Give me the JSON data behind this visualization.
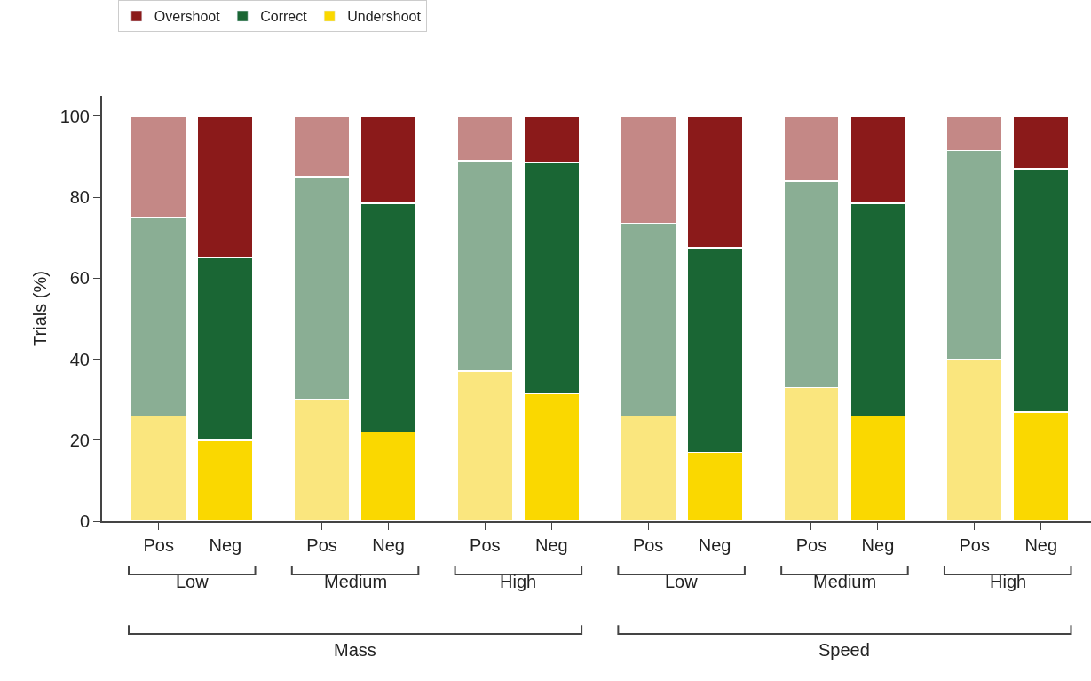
{
  "chart_data": {
    "type": "bar",
    "stacked": true,
    "ylabel": "Trials (%)",
    "categories": [
      "Pos",
      "Neg",
      "Pos",
      "Neg",
      "Pos",
      "Neg",
      "Pos",
      "Neg",
      "Pos",
      "Neg",
      "Pos",
      "Neg"
    ],
    "series": [
      {
        "name": "Undershoot",
        "color": "#fad800",
        "colors": [
          "#fae67e",
          "#fad800",
          "#fae67e",
          "#fad800",
          "#fae67e",
          "#fad800",
          "#fae67e",
          "#fad800",
          "#fae67e",
          "#fad800",
          "#fae67e",
          "#fad800"
        ],
        "values": [
          26,
          20,
          30,
          22,
          37,
          31.5,
          26,
          17,
          33,
          26,
          40,
          27
        ]
      },
      {
        "name": "Correct",
        "color": "#1a6634",
        "colors": [
          "#8aae94",
          "#1a6634",
          "#8aae94",
          "#1a6634",
          "#8aae94",
          "#1a6634",
          "#8aae94",
          "#1a6634",
          "#8aae94",
          "#1a6634",
          "#8aae94",
          "#1a6634"
        ],
        "values": [
          49,
          45,
          55,
          56.5,
          52,
          57,
          47.5,
          50.5,
          51,
          52.5,
          51.5,
          60
        ]
      },
      {
        "name": "Overshoot",
        "color": "#8b1a1a",
        "colors": [
          "#c48886",
          "#8b1a1a",
          "#c48886",
          "#8b1a1a",
          "#c48886",
          "#8b1a1a",
          "#c48886",
          "#8b1a1a",
          "#c48886",
          "#8b1a1a",
          "#c48886",
          "#8b1a1a"
        ],
        "values": [
          25,
          35,
          15,
          21.5,
          11,
          11.5,
          26.5,
          32.5,
          16,
          21.5,
          8.5,
          13
        ]
      }
    ],
    "ylim": [
      0,
      105
    ],
    "yticks": [
      0,
      20,
      40,
      60,
      80,
      100
    ],
    "legend": "top left",
    "annotations": [
      "Low",
      "Medium",
      "High",
      "Low",
      "Medium",
      "High",
      "Mass",
      "Speed"
    ]
  }
}
